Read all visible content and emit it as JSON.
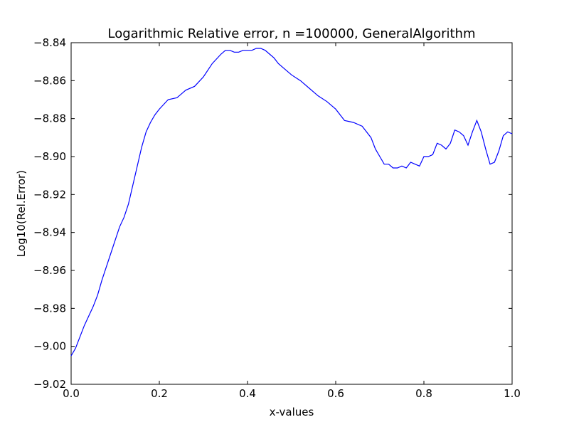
{
  "chart_data": {
    "type": "line",
    "title": "Logarithmic Relative error, n =100000, GeneralAlgorithm",
    "xlabel": "x-values",
    "ylabel": "Log10(Rel.Error)",
    "xlim": [
      0.0,
      1.0
    ],
    "ylim": [
      -9.02,
      -8.84
    ],
    "xticks": [
      0.0,
      0.2,
      0.4,
      0.6,
      0.8,
      1.0
    ],
    "xtick_labels": [
      "0.0",
      "0.2",
      "0.4",
      "0.6",
      "0.8",
      "1.0"
    ],
    "yticks": [
      -9.02,
      -9.0,
      -8.98,
      -8.96,
      -8.94,
      -8.92,
      -8.9,
      -8.88,
      -8.86,
      -8.84
    ],
    "ytick_labels": [
      "−9.02",
      "−9.00",
      "−8.98",
      "−8.96",
      "−8.94",
      "−8.92",
      "−8.90",
      "−8.88",
      "−8.86",
      "−8.84"
    ],
    "grid": false,
    "series": [
      {
        "color": "#0000ff",
        "x": [
          0.0,
          0.01,
          0.02,
          0.03,
          0.04,
          0.05,
          0.06,
          0.07,
          0.08,
          0.09,
          0.1,
          0.11,
          0.12,
          0.13,
          0.14,
          0.15,
          0.16,
          0.17,
          0.18,
          0.19,
          0.2,
          0.22,
          0.24,
          0.26,
          0.28,
          0.3,
          0.32,
          0.34,
          0.35,
          0.36,
          0.37,
          0.38,
          0.39,
          0.4,
          0.41,
          0.42,
          0.43,
          0.44,
          0.45,
          0.46,
          0.47,
          0.48,
          0.5,
          0.52,
          0.54,
          0.56,
          0.58,
          0.6,
          0.62,
          0.64,
          0.66,
          0.68,
          0.69,
          0.7,
          0.71,
          0.72,
          0.73,
          0.74,
          0.75,
          0.76,
          0.77,
          0.78,
          0.79,
          0.8,
          0.81,
          0.82,
          0.83,
          0.84,
          0.85,
          0.86,
          0.87,
          0.88,
          0.89,
          0.9,
          0.91,
          0.92,
          0.93,
          0.94,
          0.95,
          0.96,
          0.97,
          0.98,
          0.99,
          1.0
        ],
        "y": [
          -9.005,
          -9.001,
          -8.995,
          -8.989,
          -8.984,
          -8.979,
          -8.973,
          -8.965,
          -8.958,
          -8.951,
          -8.944,
          -8.937,
          -8.932,
          -8.925,
          -8.915,
          -8.905,
          -8.895,
          -8.887,
          -8.882,
          -8.878,
          -8.875,
          -8.87,
          -8.869,
          -8.865,
          -8.863,
          -8.858,
          -8.851,
          -8.846,
          -8.844,
          -8.844,
          -8.845,
          -8.845,
          -8.844,
          -8.844,
          -8.844,
          -8.843,
          -8.843,
          -8.844,
          -8.846,
          -8.848,
          -8.851,
          -8.853,
          -8.857,
          -8.86,
          -8.864,
          -8.868,
          -8.871,
          -8.875,
          -8.881,
          -8.882,
          -8.884,
          -8.89,
          -8.896,
          -8.9,
          -8.904,
          -8.904,
          -8.906,
          -8.906,
          -8.905,
          -8.906,
          -8.903,
          -8.904,
          -8.905,
          -8.9,
          -8.9,
          -8.899,
          -8.893,
          -8.894,
          -8.896,
          -8.893,
          -8.886,
          -8.887,
          -8.889,
          -8.894,
          -8.887,
          -8.881,
          -8.887,
          -8.896,
          -8.904,
          -8.903,
          -8.897,
          -8.889,
          -8.887,
          -8.888
        ]
      }
    ]
  }
}
